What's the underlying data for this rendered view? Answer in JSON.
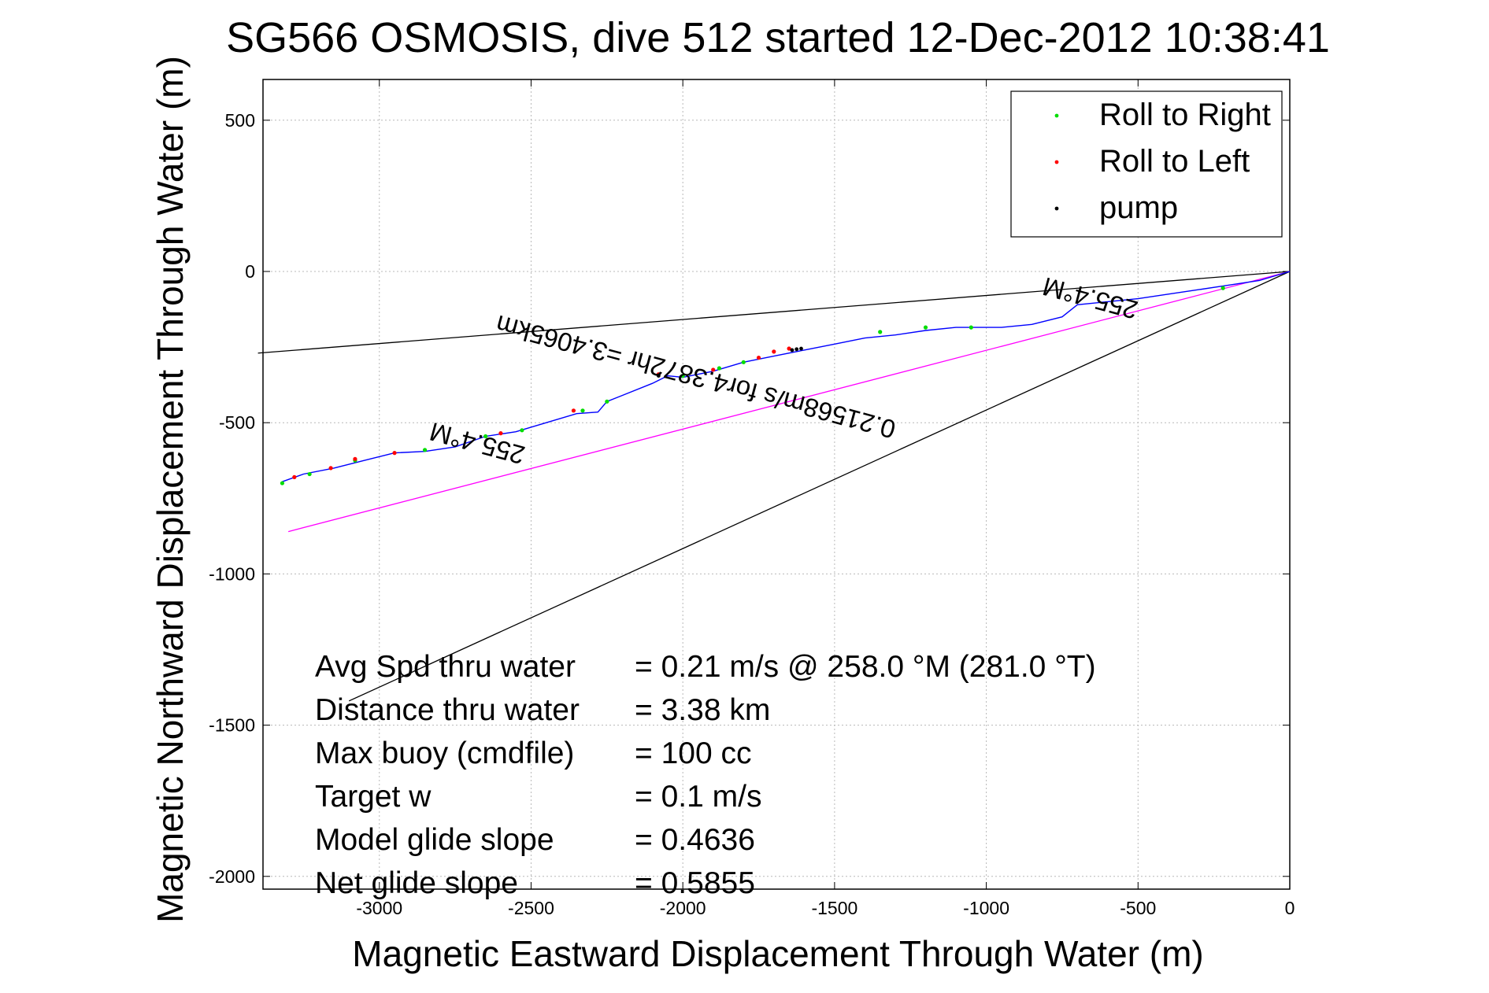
{
  "chart_data": {
    "type": "line",
    "title": "SG566 OSMOSIS, dive 512 started 12-Dec-2012 10:38:41",
    "xlabel": "Magnetic Eastward Displacement Through Water (m)",
    "ylabel": "Magnetic Northward Displacement Through Water (m)",
    "xlim": [
      -3400,
      0
    ],
    "ylim": [
      -2050,
      630
    ],
    "xticks": [
      -3000,
      -2500,
      -2000,
      -1500,
      -1000,
      -500,
      0
    ],
    "yticks": [
      500,
      0,
      -500,
      -1000,
      -1500,
      -2000
    ],
    "grid": true,
    "legend_position": "top-right",
    "legend": [
      {
        "name": "Roll to Right",
        "color": "#00dd00"
      },
      {
        "name": "Roll to Left",
        "color": "#ff0000"
      },
      {
        "name": "pump",
        "color": "#000000"
      }
    ],
    "track": {
      "color": "#0000ff",
      "x": [
        0,
        -100,
        -200,
        -300,
        -400,
        -500,
        -600,
        -700,
        -750,
        -850,
        -950,
        -1050,
        -1100,
        -1200,
        -1300,
        -1400,
        -1500,
        -1600,
        -1700,
        -1800,
        -1900,
        -2000,
        -2050,
        -2100,
        -2200,
        -2250,
        -2280,
        -2350,
        -2450,
        -2550,
        -2650,
        -2750,
        -2850,
        -2950,
        -3050,
        -3150,
        -3250,
        -3320
      ],
      "y": [
        0,
        -30,
        -45,
        -60,
        -75,
        -90,
        -100,
        -110,
        -150,
        -175,
        -185,
        -185,
        -185,
        -195,
        -210,
        -220,
        -240,
        -260,
        -280,
        -300,
        -330,
        -350,
        -345,
        -370,
        -410,
        -430,
        -465,
        -470,
        -500,
        -530,
        -545,
        -580,
        -595,
        -600,
        -625,
        -650,
        -670,
        -695
      ]
    },
    "roll_right_points": {
      "x": [
        -220,
        -1050,
        -1200,
        -1350,
        -1800,
        -1880,
        -2000,
        -2250,
        -2330,
        -2530,
        -2650,
        -2850,
        -3080,
        -3230,
        -3320
      ],
      "y": [
        -55,
        -185,
        -185,
        -200,
        -300,
        -320,
        -345,
        -430,
        -460,
        -525,
        -545,
        -590,
        -625,
        -670,
        -700
      ]
    },
    "roll_left_points": {
      "x": [
        -1650,
        -1700,
        -1750,
        -1900,
        -2080,
        -2360,
        -2600,
        -2950,
        -3080,
        -3160,
        -3280
      ],
      "y": [
        -255,
        -265,
        -285,
        -325,
        -340,
        -460,
        -535,
        -600,
        -620,
        -650,
        -680
      ]
    },
    "pump_points": {
      "x": [
        -1610,
        -1625,
        -1640,
        -2080
      ],
      "y": [
        -255,
        -257,
        -260,
        -345
      ]
    },
    "reference_lines": [
      {
        "color": "#000000",
        "x": [
          0,
          -3400
        ],
        "y": [
          0,
          -270
        ]
      },
      {
        "color": "#000000",
        "x": [
          0,
          -3100
        ],
        "y": [
          0,
          -1420
        ]
      },
      {
        "color": "#ff00ff",
        "x": [
          0,
          -3300
        ],
        "y": [
          0,
          -860
        ]
      }
    ],
    "annotations": [
      {
        "text": "255.4°M",
        "x": -650,
        "y": -60,
        "angle": 195
      },
      {
        "text": "0.21568m/s for4.3872hr =3.4065km",
        "x": -1950,
        "y": -320,
        "angle": 195
      },
      {
        "text": "255.4°M",
        "x": -2670,
        "y": -540,
        "angle": 195
      }
    ],
    "info_box": [
      {
        "label": "Avg Spd thru water",
        "value": "=  0.21 m/s @ 258.0 °M (281.0 °T)"
      },
      {
        "label": "Distance thru water",
        "value": "=  3.38 km"
      },
      {
        "label": "Max buoy (cmdfile)",
        "value": "= 100 cc"
      },
      {
        "label": "Target w",
        "value": "= 0.1 m/s"
      },
      {
        "label": "Model glide slope",
        "value": "= 0.4636"
      },
      {
        "label": "Net glide slope",
        "value": "= 0.5855"
      }
    ]
  }
}
